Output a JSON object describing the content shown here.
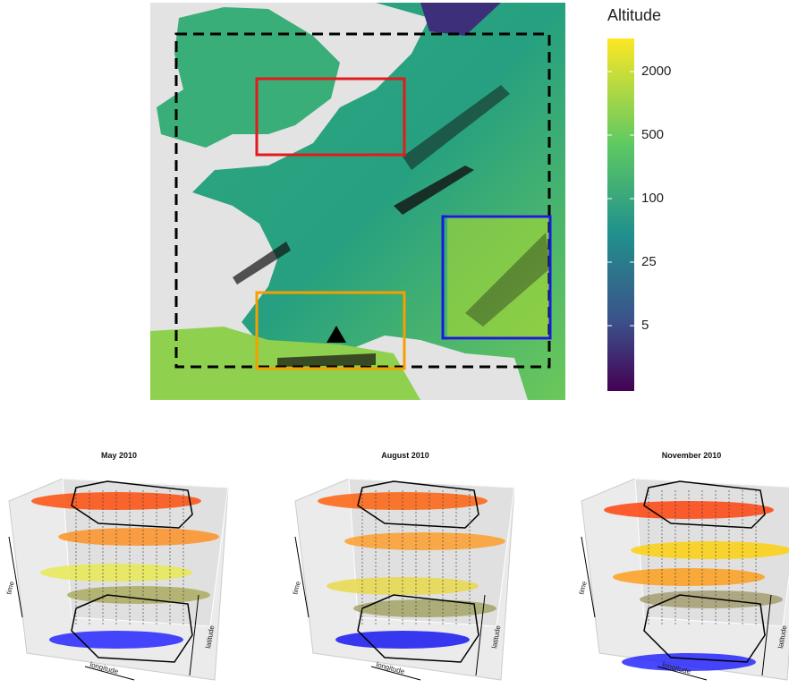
{
  "map": {
    "legend": {
      "title": "Altitude",
      "ticks": [
        2000,
        500,
        100,
        25,
        5
      ]
    }
  },
  "panels": [
    {
      "title": "May 2010",
      "axes": {
        "time": "time",
        "latitude": "latitude",
        "longitude": "longitude"
      }
    },
    {
      "title": "August 2010",
      "axes": {
        "time": "time",
        "latitude": "latitude",
        "longitude": "longitude"
      }
    },
    {
      "title": "November 2010",
      "axes": {
        "time": "time",
        "latitude": "latitude",
        "longitude": "longitude"
      }
    }
  ]
}
